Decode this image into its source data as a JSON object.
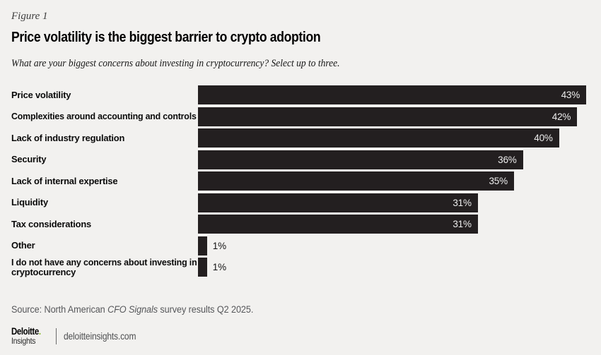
{
  "figure": {
    "label": "Figure 1"
  },
  "chart_data": {
    "type": "bar",
    "orientation": "horizontal",
    "title": "Price volatility is the biggest barrier to crypto adoption",
    "subtitle": "What are your biggest concerns about investing in cryptocurrency? Select up to three.",
    "categories": [
      "Price volatility",
      "Complexities around accounting and controls",
      "Lack of industry regulation",
      "Security",
      "Lack of internal expertise",
      "Liquidity",
      "Tax considerations",
      "Other",
      "I do not have any concerns about investing in\ncryptocurrency"
    ],
    "values": [
      43,
      42,
      40,
      36,
      35,
      31,
      31,
      1,
      1
    ],
    "unit": "%",
    "xlim": [
      0,
      43
    ],
    "grid": false,
    "legend": "none",
    "bar_color": "#231f20",
    "value_label_inside_color": "#ededed",
    "value_label_outside_color": "#141414"
  },
  "source": {
    "prefix": "Source: North American ",
    "italic_text": "CFO Signals",
    "suffix": " survey results Q2 2025."
  },
  "footer": {
    "logo_primary": "Deloitte",
    "logo_dot": ".",
    "logo_secondary": "Insights",
    "website": "deloitteinsights.com"
  },
  "colors": {
    "background": "#f2f1ef",
    "bar": "#231f20",
    "accent_green": "#86bc25",
    "source_text": "#56575a"
  }
}
